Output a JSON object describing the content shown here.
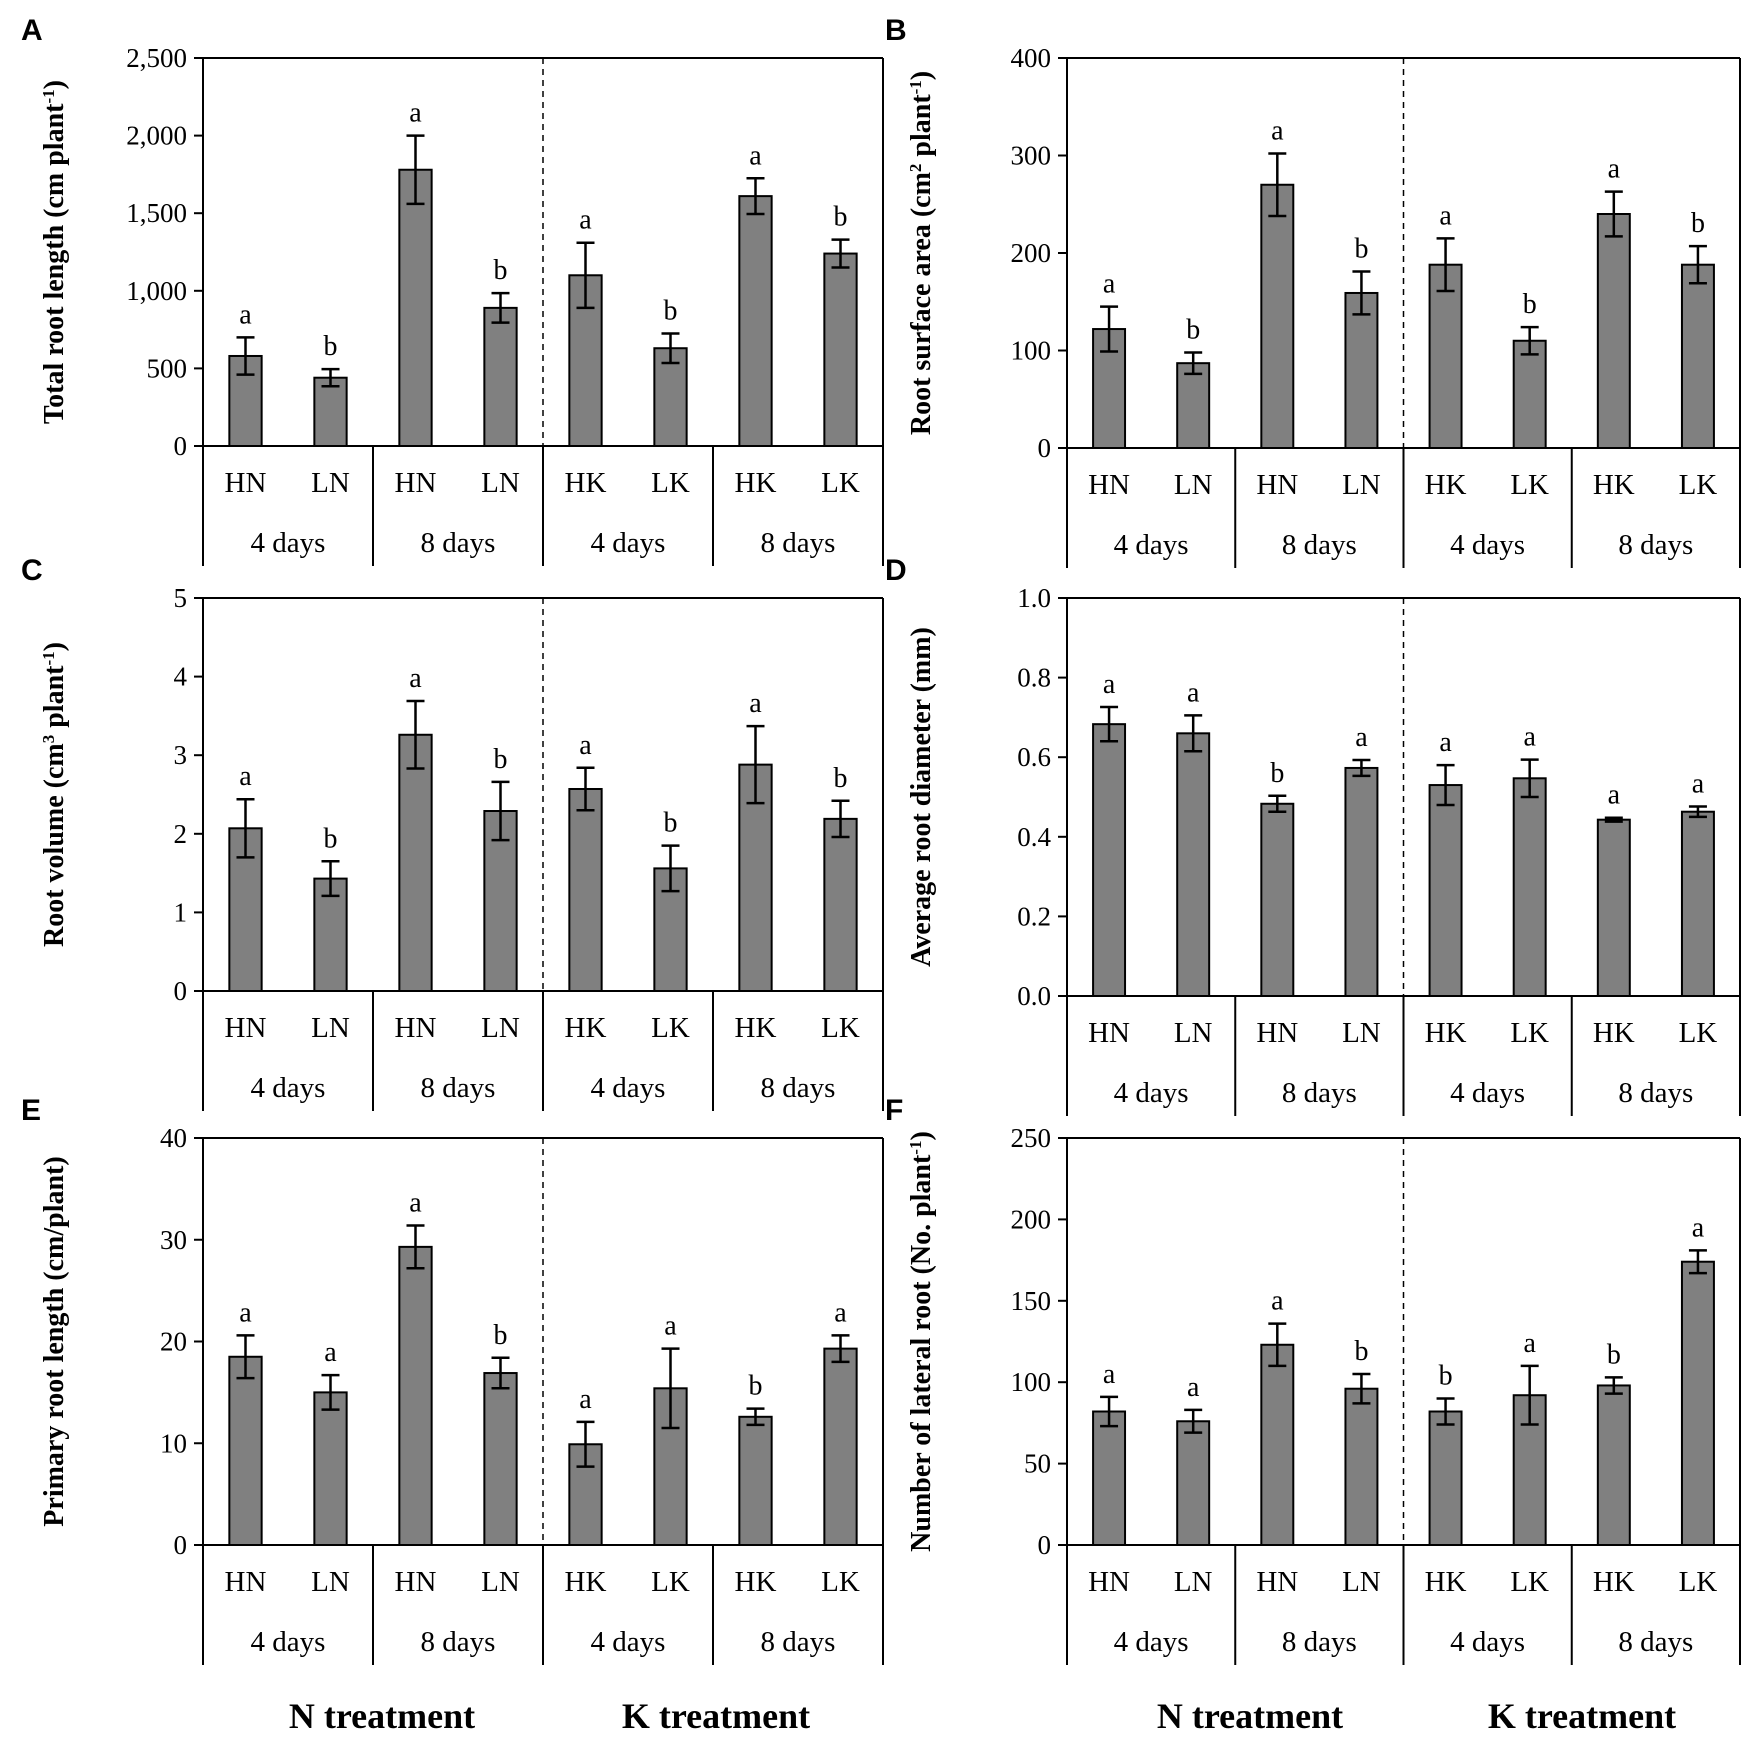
{
  "figure": {
    "bottom_labels": {
      "left": {
        "n": "N treatment",
        "k": "K treatment"
      },
      "right": {
        "n": "N treatment",
        "k": "K treatment"
      }
    },
    "colors": {
      "bar": "#808080",
      "bar_edge": "#000000",
      "axis": "#000000",
      "background": "#ffffff"
    }
  },
  "chart_data": [
    {
      "type": "bar",
      "panel": "A",
      "ylabel": "Total root length (cm plant⁻¹)",
      "ylim": [
        0,
        2500
      ],
      "ticks": [
        "0",
        "500",
        "1,000",
        "1,500",
        "2,000",
        "2,500"
      ],
      "tick_values": [
        0,
        500,
        1000,
        1500,
        2000,
        2500
      ],
      "categories": [
        "HN",
        "LN",
        "HN",
        "LN",
        "HK",
        "LK",
        "HK",
        "LK"
      ],
      "groups": [
        "4 days",
        "8 days",
        "4 days",
        "8 days"
      ],
      "values": [
        580,
        440,
        1780,
        890,
        1100,
        630,
        1610,
        1240
      ],
      "errors": [
        120,
        55,
        220,
        95,
        210,
        95,
        115,
        90
      ],
      "letters": [
        "a",
        "b",
        "a",
        "b",
        "a",
        "b",
        "a",
        "b"
      ]
    },
    {
      "type": "bar",
      "panel": "B",
      "ylabel": "Root surface area (cm² plant⁻¹)",
      "ylim": [
        0,
        400
      ],
      "ticks": [
        "0",
        "100",
        "200",
        "300",
        "400"
      ],
      "tick_values": [
        0,
        100,
        200,
        300,
        400
      ],
      "categories": [
        "HN",
        "LN",
        "HN",
        "LN",
        "HK",
        "LK",
        "HK",
        "LK"
      ],
      "groups": [
        "4 days",
        "8 days",
        "4 days",
        "8 days"
      ],
      "values": [
        122,
        87,
        270,
        159,
        188,
        110,
        240,
        188
      ],
      "errors": [
        23,
        11,
        32,
        22,
        27,
        14,
        23,
        19
      ],
      "letters": [
        "a",
        "b",
        "a",
        "b",
        "a",
        "b",
        "a",
        "b"
      ]
    },
    {
      "type": "bar",
      "panel": "C",
      "ylabel": "Root volume (cm³ plant⁻¹)",
      "ylim": [
        0,
        5
      ],
      "ticks": [
        "0",
        "1",
        "2",
        "3",
        "4",
        "5"
      ],
      "tick_values": [
        0,
        1,
        2,
        3,
        4,
        5
      ],
      "categories": [
        "HN",
        "LN",
        "HN",
        "LN",
        "HK",
        "LK",
        "HK",
        "LK"
      ],
      "groups": [
        "4 days",
        "8 days",
        "4 days",
        "8 days"
      ],
      "values": [
        2.07,
        1.43,
        3.26,
        2.29,
        2.57,
        1.56,
        2.88,
        2.19
      ],
      "errors": [
        0.37,
        0.22,
        0.43,
        0.37,
        0.27,
        0.29,
        0.49,
        0.23
      ],
      "letters": [
        "a",
        "b",
        "a",
        "b",
        "a",
        "b",
        "a",
        "b"
      ]
    },
    {
      "type": "bar",
      "panel": "D",
      "ylabel": "Average root diameter (mm)",
      "ylim": [
        0,
        1.0
      ],
      "ticks": [
        "0.0",
        "0.2",
        "0.4",
        "0.6",
        "0.8",
        "1.0"
      ],
      "tick_values": [
        0,
        0.2,
        0.4,
        0.6,
        0.8,
        1.0
      ],
      "categories": [
        "HN",
        "LN",
        "HN",
        "LN",
        "HK",
        "LK",
        "HK",
        "LK"
      ],
      "groups": [
        "4 days",
        "8 days",
        "4 days",
        "8 days"
      ],
      "values": [
        0.683,
        0.66,
        0.483,
        0.573,
        0.53,
        0.547,
        0.443,
        0.463
      ],
      "errors": [
        0.043,
        0.045,
        0.02,
        0.02,
        0.05,
        0.047,
        0.005,
        0.013
      ],
      "letters": [
        "a",
        "a",
        "b",
        "a",
        "a",
        "a",
        "a",
        "a"
      ]
    },
    {
      "type": "bar",
      "panel": "E",
      "ylabel": "Primary root length (cm/plant)",
      "ylim": [
        0,
        40
      ],
      "ticks": [
        "0",
        "10",
        "20",
        "30",
        "40"
      ],
      "tick_values": [
        0,
        10,
        20,
        30,
        40
      ],
      "categories": [
        "HN",
        "LN",
        "HN",
        "LN",
        "HK",
        "LK",
        "HK",
        "LK"
      ],
      "groups": [
        "4 days",
        "8 days",
        "4 days",
        "8 days"
      ],
      "values": [
        18.5,
        15.0,
        29.3,
        16.9,
        9.9,
        15.4,
        12.6,
        19.3
      ],
      "errors": [
        2.1,
        1.7,
        2.1,
        1.5,
        2.2,
        3.9,
        0.8,
        1.3
      ],
      "letters": [
        "a",
        "a",
        "a",
        "b",
        "a",
        "a",
        "b",
        "a"
      ]
    },
    {
      "type": "bar",
      "panel": "F",
      "ylabel": "Number of lateral root (No. plant⁻¹)",
      "ylim": [
        0,
        250
      ],
      "ticks": [
        "0",
        "50",
        "100",
        "150",
        "200",
        "250"
      ],
      "tick_values": [
        0,
        50,
        100,
        150,
        200,
        250
      ],
      "categories": [
        "HN",
        "LN",
        "HN",
        "LN",
        "HK",
        "LK",
        "HK",
        "LK"
      ],
      "groups": [
        "4 days",
        "8 days",
        "4 days",
        "8 days"
      ],
      "values": [
        82,
        76,
        123,
        96,
        82,
        92,
        98,
        174
      ],
      "errors": [
        9,
        7,
        13,
        9,
        8,
        18,
        5,
        7
      ],
      "letters": [
        "a",
        "a",
        "a",
        "b",
        "b",
        "a",
        "b",
        "a"
      ]
    }
  ]
}
